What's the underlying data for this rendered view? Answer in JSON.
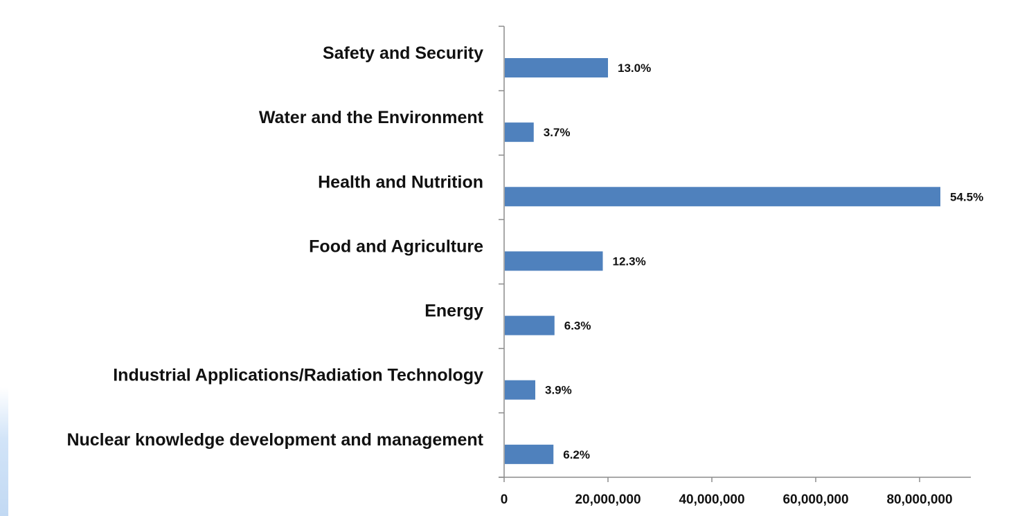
{
  "chart_data": {
    "type": "bar",
    "orientation": "horizontal",
    "categories": [
      "Safety and Security",
      "Water and the Environment",
      "Health and Nutrition",
      "Food and Agriculture",
      "Energy",
      "Industrial Applications/Radiation Technology",
      "Nuclear knowledge development and management"
    ],
    "values": [
      20000000,
      5700000,
      84000000,
      19000000,
      9700000,
      6000000,
      9500000
    ],
    "data_labels": [
      "13.0%",
      "3.7%",
      "54.5%",
      "12.3%",
      "6.3%",
      "3.9%",
      "6.2%"
    ],
    "x_ticks": [
      0,
      20000000,
      40000000,
      60000000,
      80000000
    ],
    "x_tick_labels": [
      "0",
      "20,000,000",
      "40,000,000",
      "60,000,000",
      "80,000,000"
    ],
    "xlim": [
      0,
      90000000
    ],
    "title": "",
    "xlabel": "",
    "ylabel": "",
    "grid": false,
    "legend": "none",
    "bar_color": "#4f81bd"
  }
}
